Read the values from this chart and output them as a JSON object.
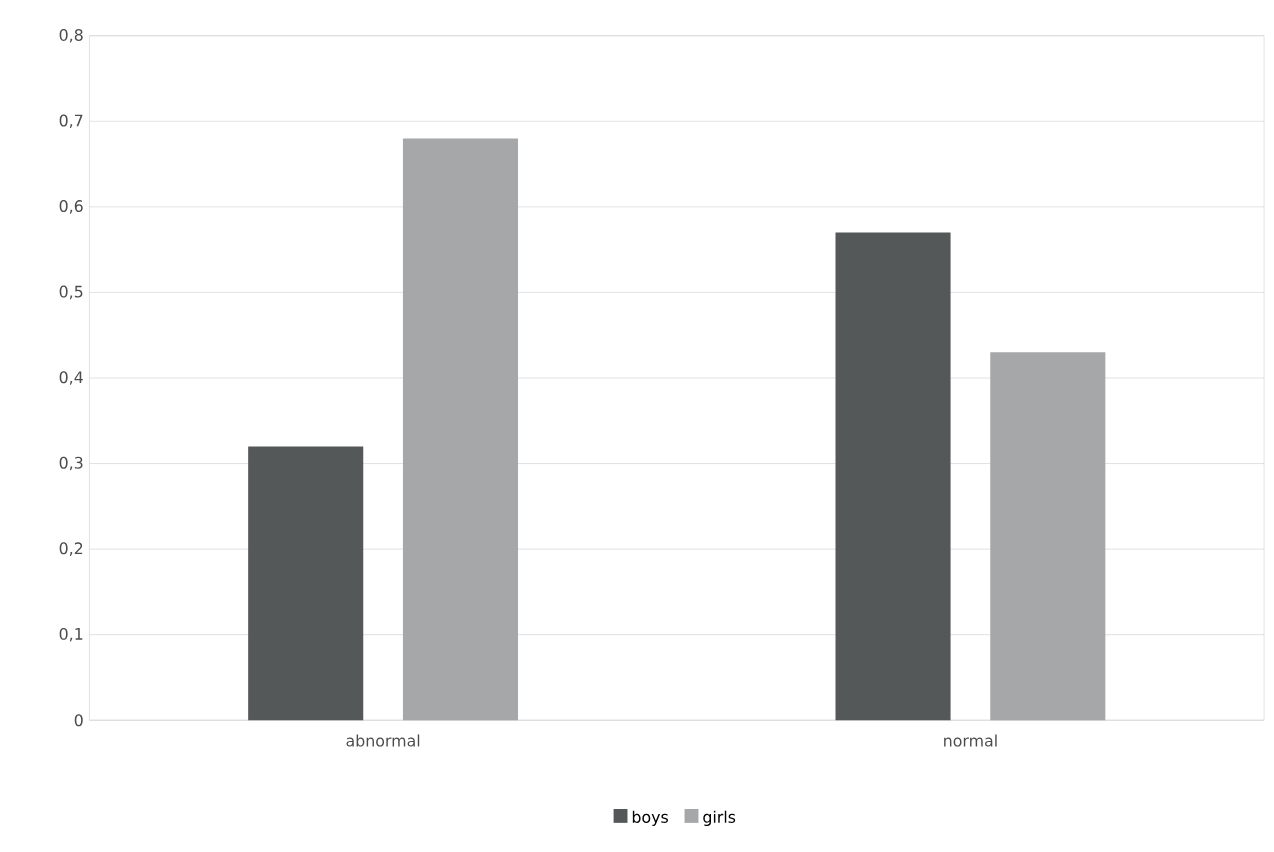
{
  "chart_data": {
    "type": "bar",
    "categories": [
      "abnormal",
      "normal"
    ],
    "series": [
      {
        "name": "boys",
        "color": "#555858",
        "values": [
          0.32,
          0.57
        ]
      },
      {
        "name": "girls",
        "color": "#a5a7a8",
        "values": [
          0.68,
          0.43
        ]
      }
    ],
    "ylim": [
      0,
      0.8
    ],
    "yticks": [
      0,
      {
        "value": 0.1,
        "label": "0,1"
      },
      {
        "value": 0.2,
        "label": "0,2"
      },
      {
        "value": 0.3,
        "label": "0,3"
      },
      {
        "value": 0.4,
        "label": "0,4"
      },
      {
        "value": 0.5,
        "label": "0,5"
      },
      {
        "value": 0.6,
        "label": "0,6"
      },
      {
        "value": 0.7,
        "label": "0,7"
      },
      {
        "value": 0.8,
        "label": "0,8"
      }
    ],
    "grid": "y",
    "legend": "bottom"
  }
}
